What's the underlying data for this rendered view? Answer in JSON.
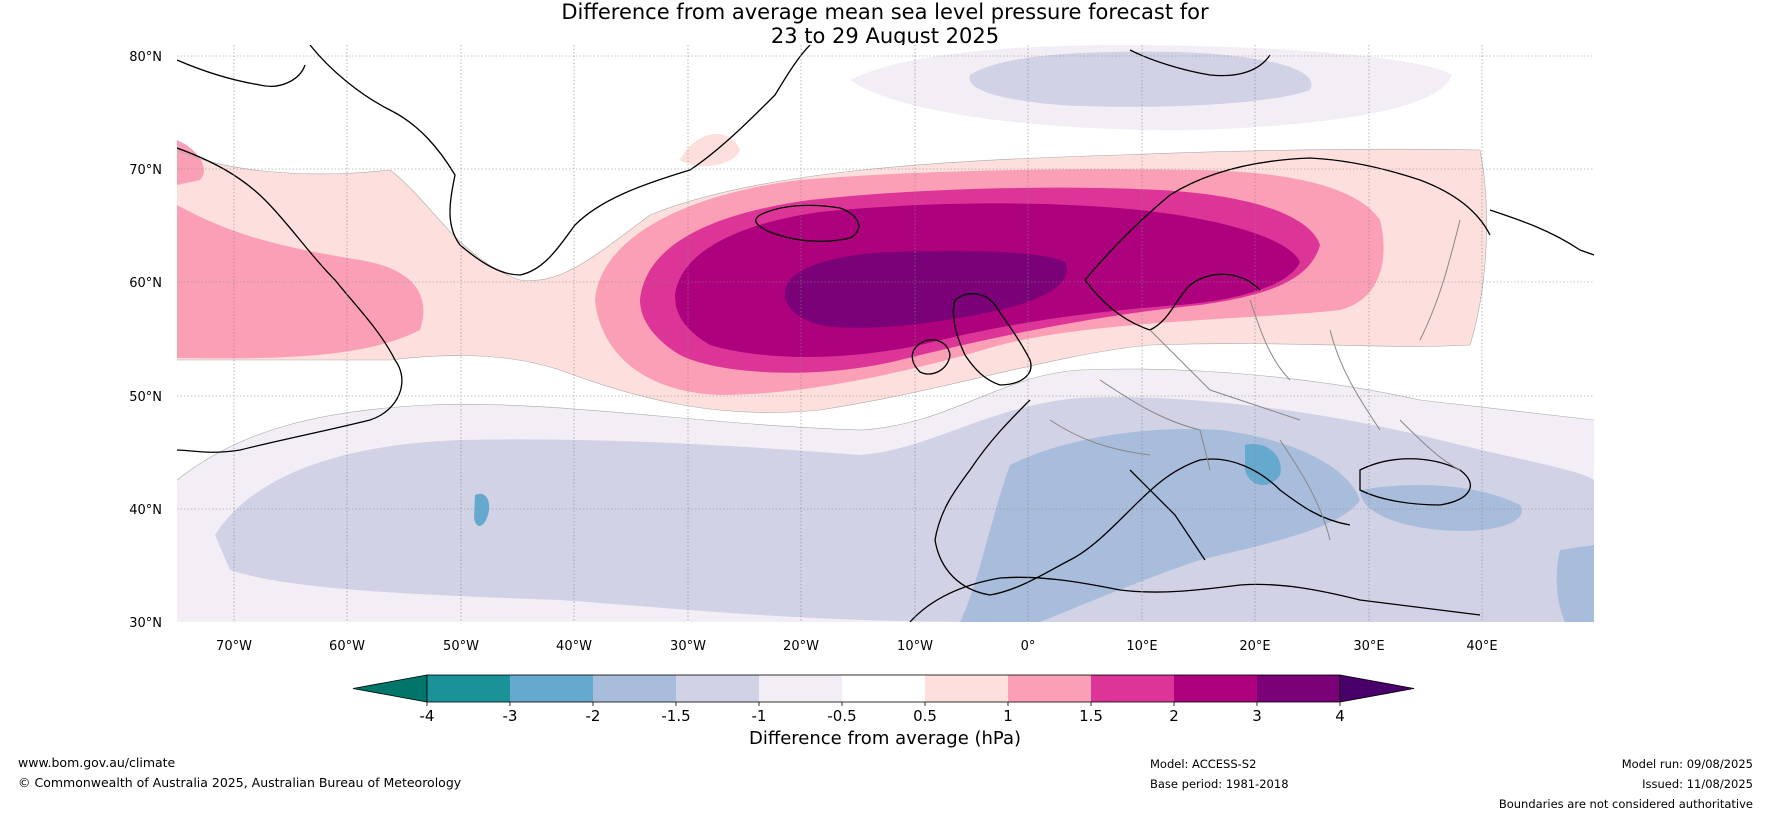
{
  "title": {
    "line1": "Difference from average mean sea level pressure forecast for",
    "line2": "23 to 29 August 2025"
  },
  "map": {
    "lat_labels": [
      "80°N",
      "70°N",
      "60°N",
      "50°N",
      "40°N",
      "30°N"
    ],
    "lon_labels": [
      "70°W",
      "60°W",
      "50°W",
      "40°W",
      "30°W",
      "20°W",
      "10°W",
      "0°",
      "10°E",
      "20°E",
      "30°E",
      "40°E"
    ]
  },
  "colorbar": {
    "title": "Difference from average (hPa)",
    "tick_labels": [
      "-4",
      "-3",
      "-2",
      "-1.5",
      "-1",
      "-0.5",
      "0.5",
      "1",
      "1.5",
      "2",
      "3",
      "4"
    ],
    "colors": [
      "#00766a",
      "#1a9298",
      "#66a9cf",
      "#a8bcdb",
      "#d1d2e6",
      "#f3eef6",
      "#ffffff",
      "#fde0dd",
      "#fa9fb5",
      "#dd3497",
      "#ae017e",
      "#7a0177",
      "#49006a"
    ]
  },
  "footer": {
    "website": "www.bom.gov.au/climate",
    "copyright": "© Commonwealth of Australia 2025, Australian Bureau of Meteorology",
    "model": "Model: ACCESS-S2",
    "base_period": "Base period: 1981-2018",
    "model_run": "Model run: 09/08/2025",
    "issued": "Issued: 11/08/2025",
    "disclaimer": "Boundaries are not considered authoritative"
  }
}
